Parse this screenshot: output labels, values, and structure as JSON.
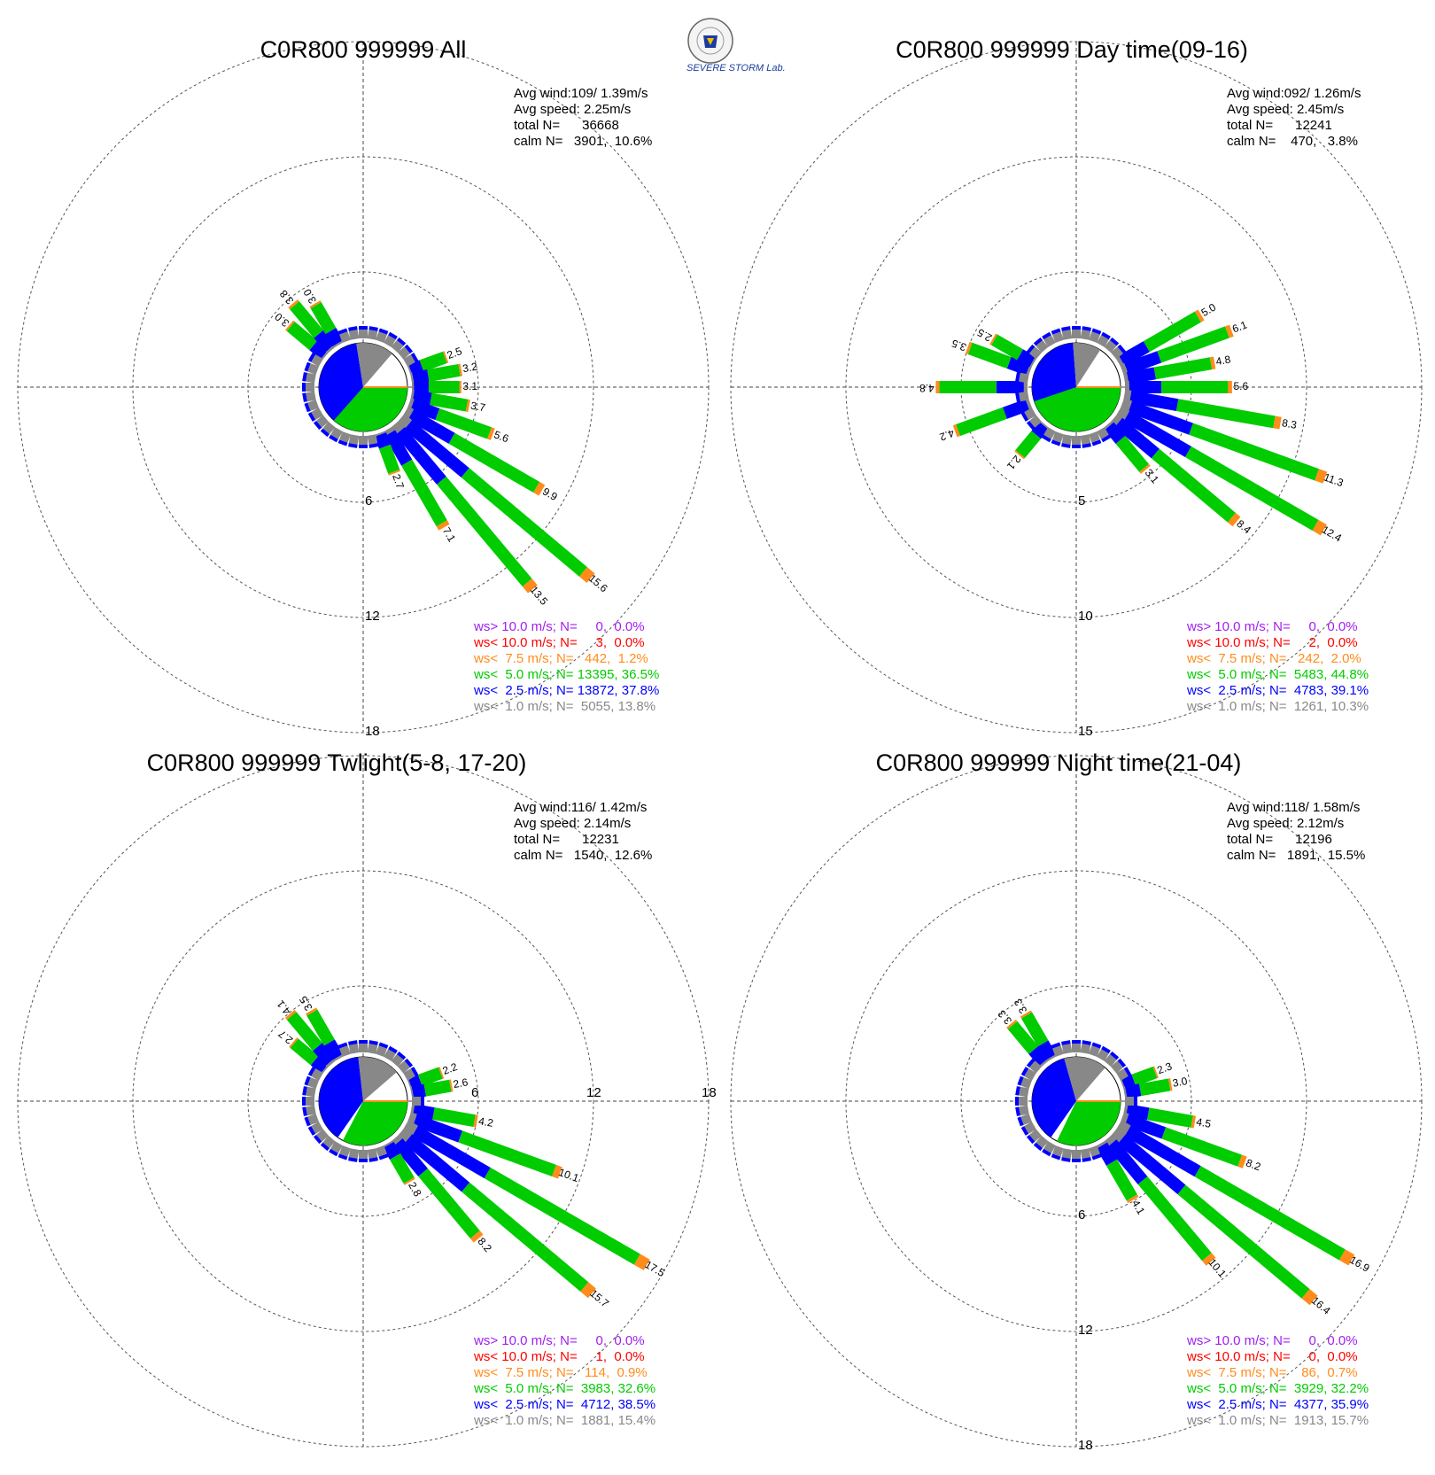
{
  "logo": {
    "text": "SEVERE STORM Lab."
  },
  "colors": {
    "purple": "#a020f0",
    "red": "#ff0000",
    "orange": "#ff8c1a",
    "green": "#00cc00",
    "blue": "#0000ff",
    "gray": "#888888",
    "white": "#ffffff"
  },
  "chart_data": [
    {
      "type": "windrose",
      "title": "C0R800 999999 All",
      "stats": {
        "avg_wind": "Avg wind:109/ 1.39m/s",
        "avg_speed": "Avg speed: 2.25m/s",
        "total": "total N=      36668",
        "calm": "calm N=   3901,  10.6%"
      },
      "rings": [
        6,
        12,
        18
      ],
      "ring_labels": [
        "6",
        "12",
        "18"
      ],
      "rmax": 18,
      "calm_pct": 10.6,
      "pie": [
        37.8,
        36.5,
        13.8
      ],
      "bars": [
        {
          "dir": 70,
          "total": 2.5
        },
        {
          "dir": 80,
          "total": 3.2
        },
        {
          "dir": 90,
          "total": 3.1
        },
        {
          "dir": 100,
          "total": 3.7
        },
        {
          "dir": 110,
          "total": 5.6
        },
        {
          "dir": 120,
          "total": 9.9
        },
        {
          "dir": 130,
          "total": 15.6
        },
        {
          "dir": 140,
          "total": 13.5
        },
        {
          "dir": 150,
          "total": 7.1
        },
        {
          "dir": 160,
          "total": 2.7
        },
        {
          "dir": 310,
          "total": 3.0
        },
        {
          "dir": 320,
          "total": 3.8
        },
        {
          "dir": 330,
          "total": 3.0
        }
      ],
      "legend": [
        {
          "text": "ws> 10.0 m/s; N=     0,  0.0%",
          "color": "purple"
        },
        {
          "text": "ws< 10.0 m/s; N=     3,  0.0%",
          "color": "red"
        },
        {
          "text": "ws<  7.5 m/s; N=   442,  1.2%",
          "color": "orange"
        },
        {
          "text": "ws<  5.0 m/s; N= 13395, 36.5%",
          "color": "green"
        },
        {
          "text": "ws<  2.5 m/s; N= 13872, 37.8%",
          "color": "blue"
        },
        {
          "text": "ws<  1.0 m/s; N=  5055, 13.8%",
          "color": "gray"
        }
      ]
    },
    {
      "type": "windrose",
      "title": "C0R800 999999 Day time(09-16)",
      "stats": {
        "avg_wind": "Avg wind:092/ 1.26m/s",
        "avg_speed": "Avg speed: 2.45m/s",
        "total": "total N=      12241",
        "calm": "calm N=    470,   3.8%"
      },
      "rings": [
        5,
        10,
        15
      ],
      "ring_labels": [
        "5",
        "10",
        "15"
      ],
      "rmax": 15,
      "calm_pct": 3.8,
      "pie": [
        39.1,
        44.8,
        10.3
      ],
      "bars": [
        {
          "dir": 60,
          "total": 5.0
        },
        {
          "dir": 70,
          "total": 6.1
        },
        {
          "dir": 80,
          "total": 4.8
        },
        {
          "dir": 90,
          "total": 5.6
        },
        {
          "dir": 100,
          "total": 8.3
        },
        {
          "dir": 110,
          "total": 11.3
        },
        {
          "dir": 120,
          "total": 12.4
        },
        {
          "dir": 130,
          "total": 8.4
        },
        {
          "dir": 140,
          "total": 3.1
        },
        {
          "dir": 220,
          "total": 2.1
        },
        {
          "dir": 250,
          "total": 4.2
        },
        {
          "dir": 270,
          "total": 4.8
        },
        {
          "dir": 290,
          "total": 3.5
        },
        {
          "dir": 300,
          "total": 2.5
        }
      ],
      "legend": [
        {
          "text": "ws> 10.0 m/s; N=     0,  0.0%",
          "color": "purple"
        },
        {
          "text": "ws< 10.0 m/s; N=     2,  0.0%",
          "color": "red"
        },
        {
          "text": "ws<  7.5 m/s; N=   242,  2.0%",
          "color": "orange"
        },
        {
          "text": "ws<  5.0 m/s; N=  5483, 44.8%",
          "color": "green"
        },
        {
          "text": "ws<  2.5 m/s; N=  4783, 39.1%",
          "color": "blue"
        },
        {
          "text": "ws<  1.0 m/s; N=  1261, 10.3%",
          "color": "gray"
        }
      ]
    },
    {
      "type": "windrose",
      "title": "C0R800 999999 Twlight(5-8, 17-20)",
      "stats": {
        "avg_wind": "Avg wind:116/ 1.42m/s",
        "avg_speed": "Avg speed: 2.14m/s",
        "total": "total N=      12231",
        "calm": "calm N=   1540,  12.6%"
      },
      "rings": [
        6,
        12,
        18
      ],
      "ring_labels": [
        "6",
        "12",
        "18"
      ],
      "rmax": 18,
      "calm_pct": 12.6,
      "pie": [
        38.5,
        32.6,
        15.4
      ],
      "bars": [
        {
          "dir": 70,
          "total": 2.2
        },
        {
          "dir": 80,
          "total": 2.6
        },
        {
          "dir": 100,
          "total": 4.2
        },
        {
          "dir": 110,
          "total": 10.1
        },
        {
          "dir": 120,
          "total": 17.5
        },
        {
          "dir": 130,
          "total": 15.7
        },
        {
          "dir": 140,
          "total": 8.2
        },
        {
          "dir": 150,
          "total": 2.8
        },
        {
          "dir": 310,
          "total": 2.7
        },
        {
          "dir": 320,
          "total": 4.1
        },
        {
          "dir": 330,
          "total": 3.5
        }
      ],
      "legend": [
        {
          "text": "ws> 10.0 m/s; N=     0,  0.0%",
          "color": "purple"
        },
        {
          "text": "ws< 10.0 m/s; N=     1,  0.0%",
          "color": "red"
        },
        {
          "text": "ws<  7.5 m/s; N=   114,  0.9%",
          "color": "orange"
        },
        {
          "text": "ws<  5.0 m/s; N=  3983, 32.6%",
          "color": "green"
        },
        {
          "text": "ws<  2.5 m/s; N=  4712, 38.5%",
          "color": "blue"
        },
        {
          "text": "ws<  1.0 m/s; N=  1881, 15.4%",
          "color": "gray"
        }
      ]
    },
    {
      "type": "windrose",
      "title": "C0R800 999999 Night time(21-04)",
      "stats": {
        "avg_wind": "Avg wind:118/ 1.58m/s",
        "avg_speed": "Avg speed: 2.12m/s",
        "total": "total N=      12196",
        "calm": "calm N=   1891,  15.5%"
      },
      "rings": [
        6,
        12,
        18
      ],
      "ring_labels": [
        "6",
        "12",
        "18"
      ],
      "rmax": 18,
      "calm_pct": 15.5,
      "pie": [
        35.9,
        32.2,
        15.7
      ],
      "bars": [
        {
          "dir": 70,
          "total": 2.3
        },
        {
          "dir": 80,
          "total": 3.0
        },
        {
          "dir": 100,
          "total": 4.5
        },
        {
          "dir": 110,
          "total": 8.2
        },
        {
          "dir": 120,
          "total": 16.9
        },
        {
          "dir": 130,
          "total": 16.4
        },
        {
          "dir": 140,
          "total": 10.1
        },
        {
          "dir": 150,
          "total": 4.1
        },
        {
          "dir": 320,
          "total": 3.3
        },
        {
          "dir": 330,
          "total": 3.3
        }
      ],
      "legend": [
        {
          "text": "ws> 10.0 m/s; N=     0,  0.0%",
          "color": "purple"
        },
        {
          "text": "ws< 10.0 m/s; N=     0,  0.0%",
          "color": "red"
        },
        {
          "text": "ws<  7.5 m/s; N=    86,  0.7%",
          "color": "orange"
        },
        {
          "text": "ws<  5.0 m/s; N=  3929, 32.2%",
          "color": "green"
        },
        {
          "text": "ws<  2.5 m/s; N=  4377, 35.9%",
          "color": "blue"
        },
        {
          "text": "ws<  1.0 m/s; N=  1913, 15.7%",
          "color": "gray"
        }
      ]
    }
  ]
}
